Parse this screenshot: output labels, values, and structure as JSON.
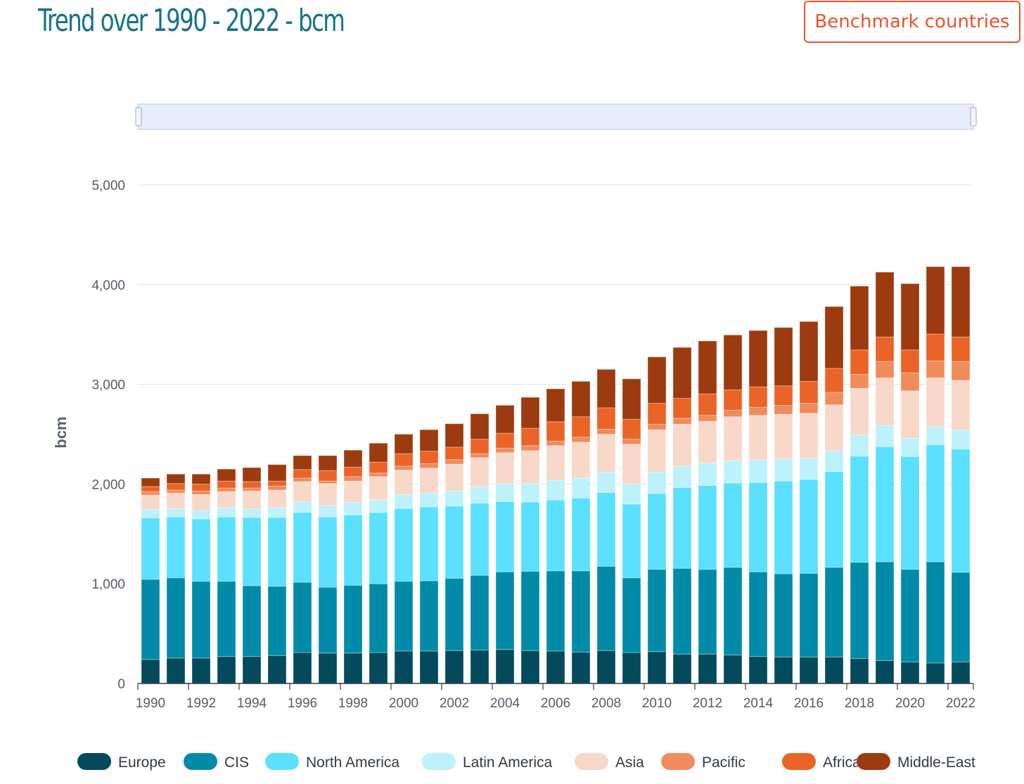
{
  "header": {
    "title": "Trend over 1990 - 2022 - bcm",
    "benchmark_button": "Benchmark countries"
  },
  "chart_data": {
    "type": "bar",
    "stacked": true,
    "title": "Trend over 1990 - 2022 - bcm",
    "xlabel": "",
    "ylabel": "bcm",
    "ylim": [
      0,
      5000
    ],
    "yticks": [
      0,
      1000,
      2000,
      3000,
      4000,
      5000
    ],
    "ytick_labels": [
      "0",
      "1,000",
      "2,000",
      "3,000",
      "4,000",
      "5,000"
    ],
    "grid": true,
    "legend_position": "bottom",
    "categories": [
      1990,
      1991,
      1992,
      1993,
      1994,
      1995,
      1996,
      1997,
      1998,
      1999,
      2000,
      2001,
      2002,
      2003,
      2004,
      2005,
      2006,
      2007,
      2008,
      2009,
      2010,
      2011,
      2012,
      2013,
      2014,
      2015,
      2016,
      2017,
      2018,
      2019,
      2020,
      2021,
      2022
    ],
    "xtick_labels": [
      "1990",
      "1992",
      "1994",
      "1996",
      "1998",
      "2000",
      "2002",
      "2004",
      "2006",
      "2008",
      "2010",
      "2012",
      "2014",
      "2016",
      "2018",
      "2020",
      "2022"
    ],
    "series": [
      {
        "name": "Europe",
        "color": "#024a5c",
        "values": [
          240,
          255,
          255,
          270,
          270,
          280,
          310,
          305,
          305,
          310,
          325,
          325,
          330,
          335,
          340,
          330,
          325,
          315,
          330,
          310,
          320,
          295,
          295,
          285,
          270,
          265,
          265,
          265,
          250,
          230,
          215,
          205,
          215
        ]
      },
      {
        "name": "CIS",
        "color": "#028ba8",
        "values": [
          805,
          805,
          770,
          755,
          710,
          695,
          705,
          660,
          680,
          690,
          700,
          705,
          725,
          750,
          780,
          795,
          805,
          815,
          845,
          750,
          825,
          860,
          850,
          880,
          850,
          835,
          840,
          900,
          965,
          990,
          930,
          1015,
          900
        ]
      },
      {
        "name": "North America",
        "color": "#5be0ff",
        "values": [
          615,
          610,
          625,
          645,
          685,
          690,
          700,
          705,
          705,
          715,
          730,
          740,
          725,
          725,
          705,
          695,
          710,
          730,
          740,
          740,
          760,
          810,
          840,
          845,
          895,
          930,
          940,
          960,
          1065,
          1155,
          1130,
          1175,
          1235
        ]
      },
      {
        "name": "Latin America",
        "color": "#bdf1fc",
        "values": [
          85,
          85,
          85,
          95,
          85,
          100,
          105,
          115,
          125,
          125,
          140,
          140,
          150,
          165,
          180,
          185,
          195,
          200,
          205,
          200,
          215,
          215,
          225,
          225,
          230,
          225,
          215,
          210,
          210,
          210,
          185,
          180,
          190
        ]
      },
      {
        "name": "Asia",
        "color": "#f8d8c8",
        "values": [
          145,
          155,
          160,
          160,
          180,
          175,
          205,
          220,
          215,
          235,
          245,
          250,
          270,
          290,
          310,
          330,
          350,
          360,
          380,
          400,
          425,
          420,
          420,
          440,
          445,
          445,
          450,
          460,
          470,
          480,
          475,
          490,
          500
        ]
      },
      {
        "name": "Pacific",
        "color": "#f08c5c",
        "values": [
          35,
          30,
          35,
          35,
          30,
          40,
          35,
          25,
          45,
          35,
          40,
          45,
          45,
          40,
          45,
          50,
          45,
          50,
          50,
          50,
          55,
          60,
          60,
          65,
          80,
          90,
          100,
          125,
          140,
          165,
          180,
          170,
          190
        ]
      },
      {
        "name": "Africa",
        "color": "#ea6427",
        "values": [
          50,
          65,
          70,
          70,
          65,
          50,
          85,
          105,
          95,
          110,
          125,
          125,
          125,
          145,
          150,
          175,
          195,
          205,
          215,
          200,
          210,
          200,
          215,
          205,
          205,
          195,
          220,
          240,
          245,
          245,
          230,
          270,
          245
        ]
      },
      {
        "name": "Middle-East",
        "color": "#9c3b0f",
        "values": [
          85,
          95,
          100,
          120,
          140,
          165,
          140,
          150,
          170,
          190,
          195,
          215,
          235,
          255,
          280,
          310,
          330,
          355,
          385,
          405,
          465,
          510,
          530,
          550,
          565,
          585,
          600,
          620,
          640,
          650,
          665,
          675,
          705
        ]
      }
    ]
  }
}
